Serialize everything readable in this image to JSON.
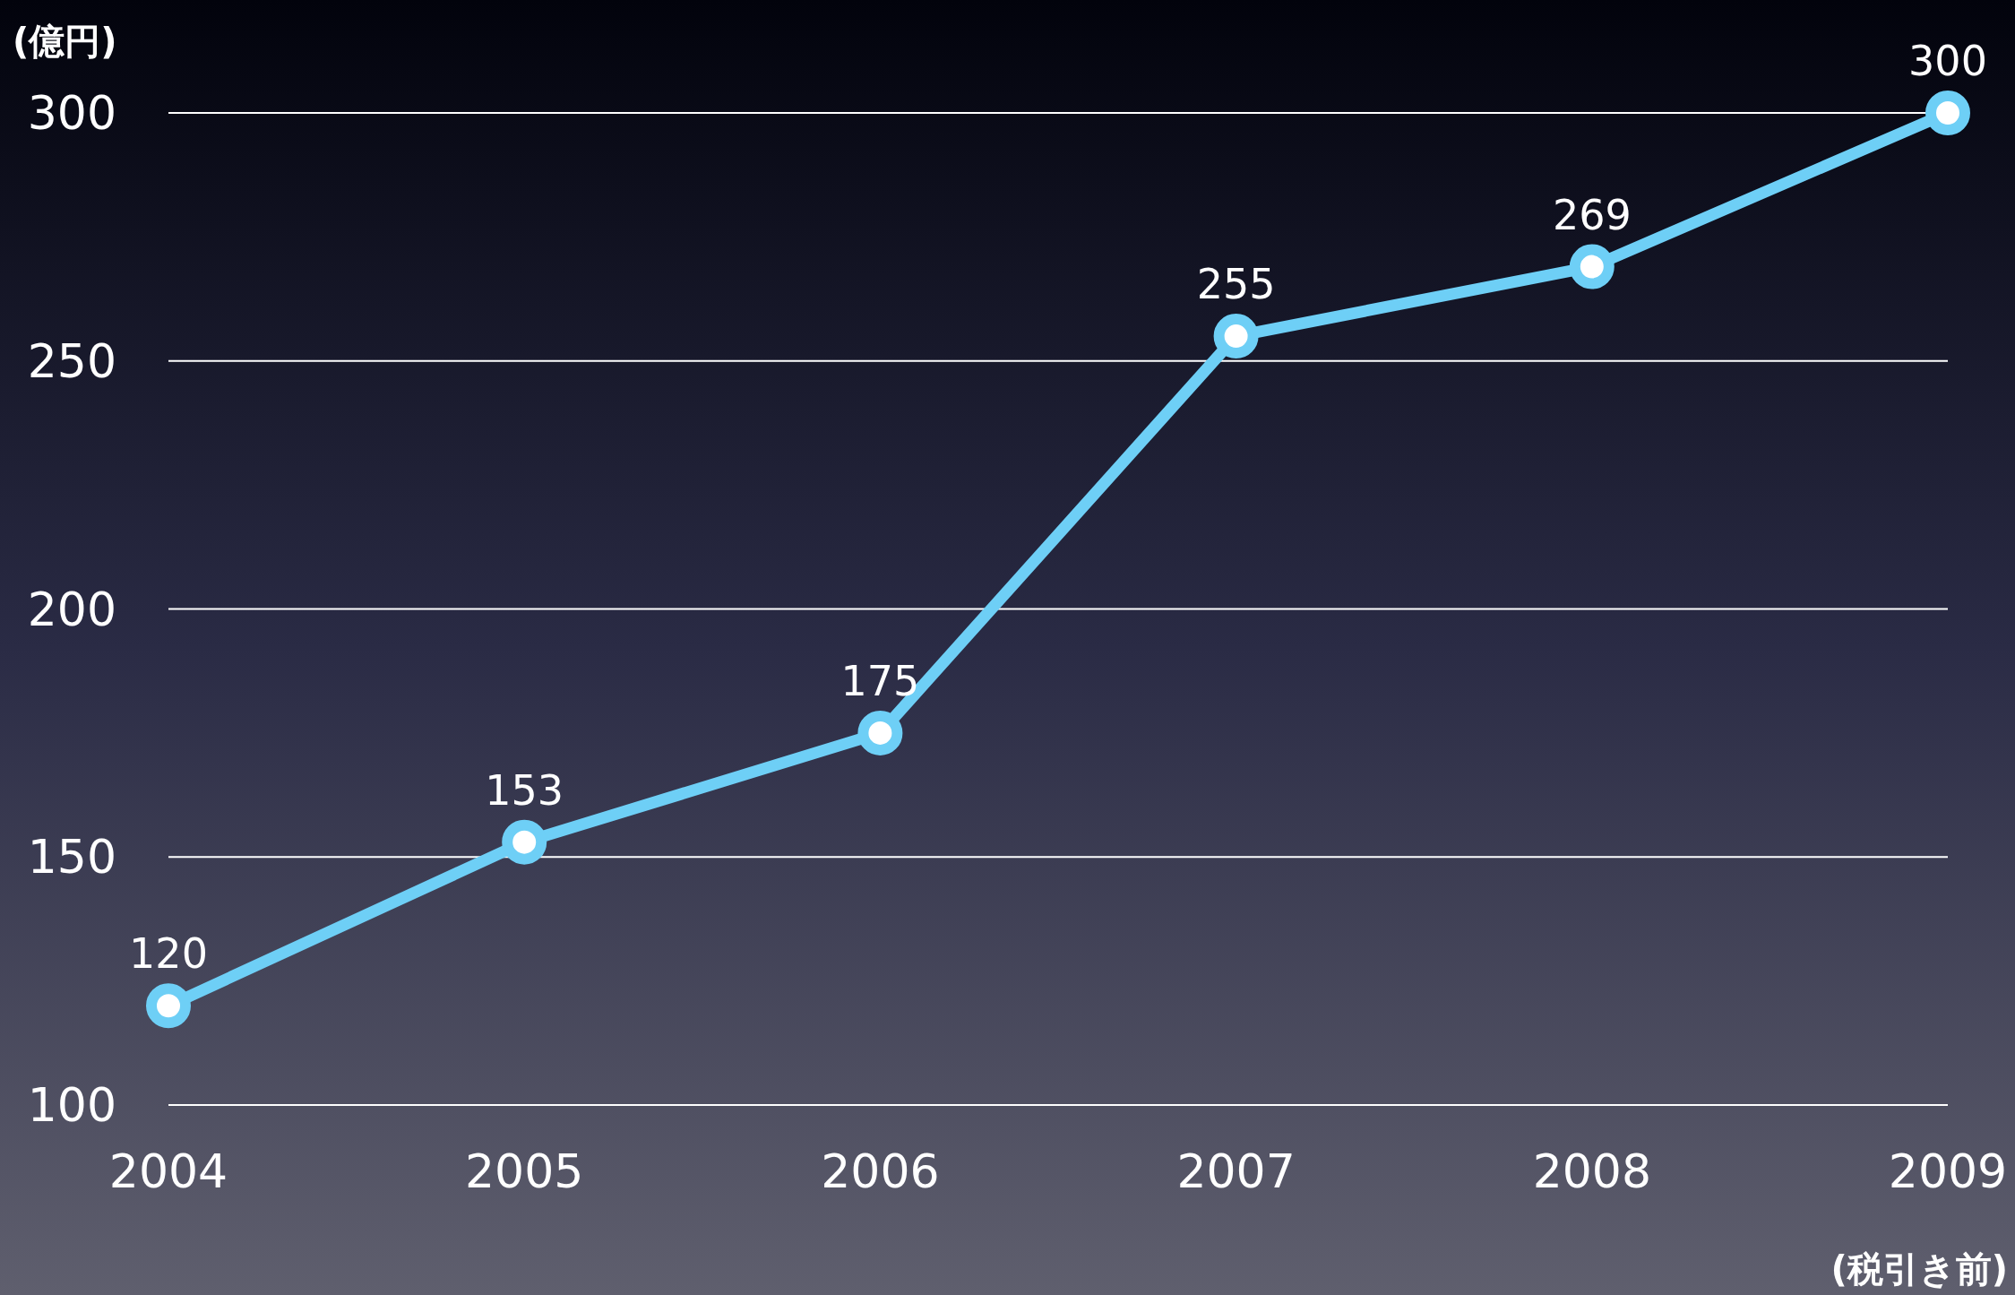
{
  "chart_data": {
    "type": "line",
    "ylabel": "(億円)",
    "annotations": [
      "(税引き前)"
    ],
    "categories": [
      "2004",
      "2005",
      "2006",
      "2007",
      "2008",
      "2009"
    ],
    "series": [
      {
        "color": "#6ecff6",
        "values": [
          120,
          153,
          175,
          255,
          269,
          300
        ]
      }
    ],
    "ylim": [
      100,
      300
    ],
    "yticks": [
      100,
      150,
      200,
      250,
      300
    ],
    "grid": "y",
    "data_labels": true,
    "marker": "circle",
    "line_style": "solid"
  }
}
